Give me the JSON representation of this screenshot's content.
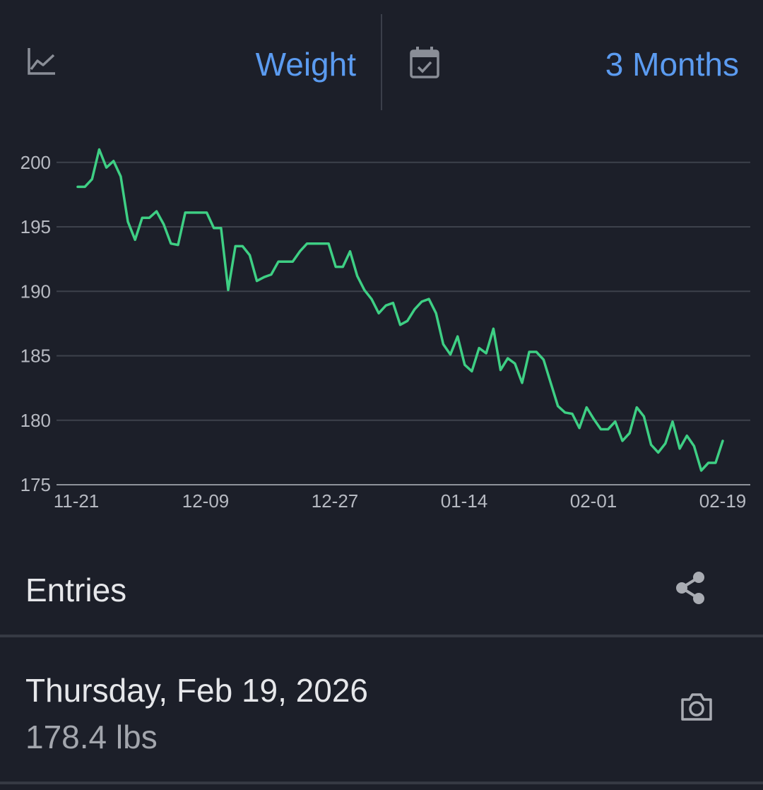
{
  "header": {
    "metric_icon": "line-chart-icon",
    "metric_label": "Weight",
    "calendar_icon": "calendar-check-icon",
    "range_label": "3 Months"
  },
  "chart_data": {
    "type": "line",
    "x_tick_labels": [
      "11-21",
      "12-09",
      "12-27",
      "01-14",
      "02-01",
      "02-19"
    ],
    "y_ticks": [
      175,
      180,
      185,
      190,
      195,
      200
    ],
    "ylim": [
      175,
      202
    ],
    "grid": true,
    "series": [
      {
        "color": "#3ecf84",
        "values": [
          198.1,
          198.1,
          198.7,
          201.0,
          199.6,
          200.1,
          198.9,
          195.4,
          194.0,
          195.7,
          195.7,
          196.2,
          195.2,
          193.7,
          193.6,
          196.1,
          196.1,
          196.1,
          196.1,
          194.9,
          194.9,
          190.1,
          193.5,
          193.5,
          192.8,
          190.8,
          191.1,
          191.3,
          192.3,
          192.3,
          192.3,
          193.1,
          193.7,
          193.7,
          193.7,
          193.7,
          191.9,
          191.9,
          193.1,
          191.2,
          190.1,
          189.4,
          188.3,
          188.9,
          189.1,
          187.4,
          187.7,
          188.6,
          189.2,
          189.4,
          188.3,
          185.9,
          185.1,
          186.5,
          184.3,
          183.8,
          185.6,
          185.2,
          187.1,
          183.9,
          184.8,
          184.4,
          182.9,
          185.3,
          185.3,
          184.7,
          182.9,
          181.1,
          180.6,
          180.5,
          179.4,
          181.0,
          180.1,
          179.3,
          179.3,
          179.9,
          178.4,
          179.0,
          181.0,
          180.3,
          178.1,
          177.5,
          178.2,
          179.9,
          177.8,
          178.8,
          178.0,
          176.1,
          176.7,
          176.7,
          178.4
        ]
      }
    ]
  },
  "entries": {
    "title": "Entries",
    "share_icon": "share-icon",
    "items": [
      {
        "date": "Thursday, Feb 19, 2026",
        "value": "178.4 lbs",
        "camera_icon": "camera-icon"
      }
    ]
  },
  "colors": {
    "background": "#1c1f29",
    "accent": "#5b9bf0",
    "line": "#3ecf84",
    "grid": "#3d414b",
    "divider": "#363a44"
  }
}
